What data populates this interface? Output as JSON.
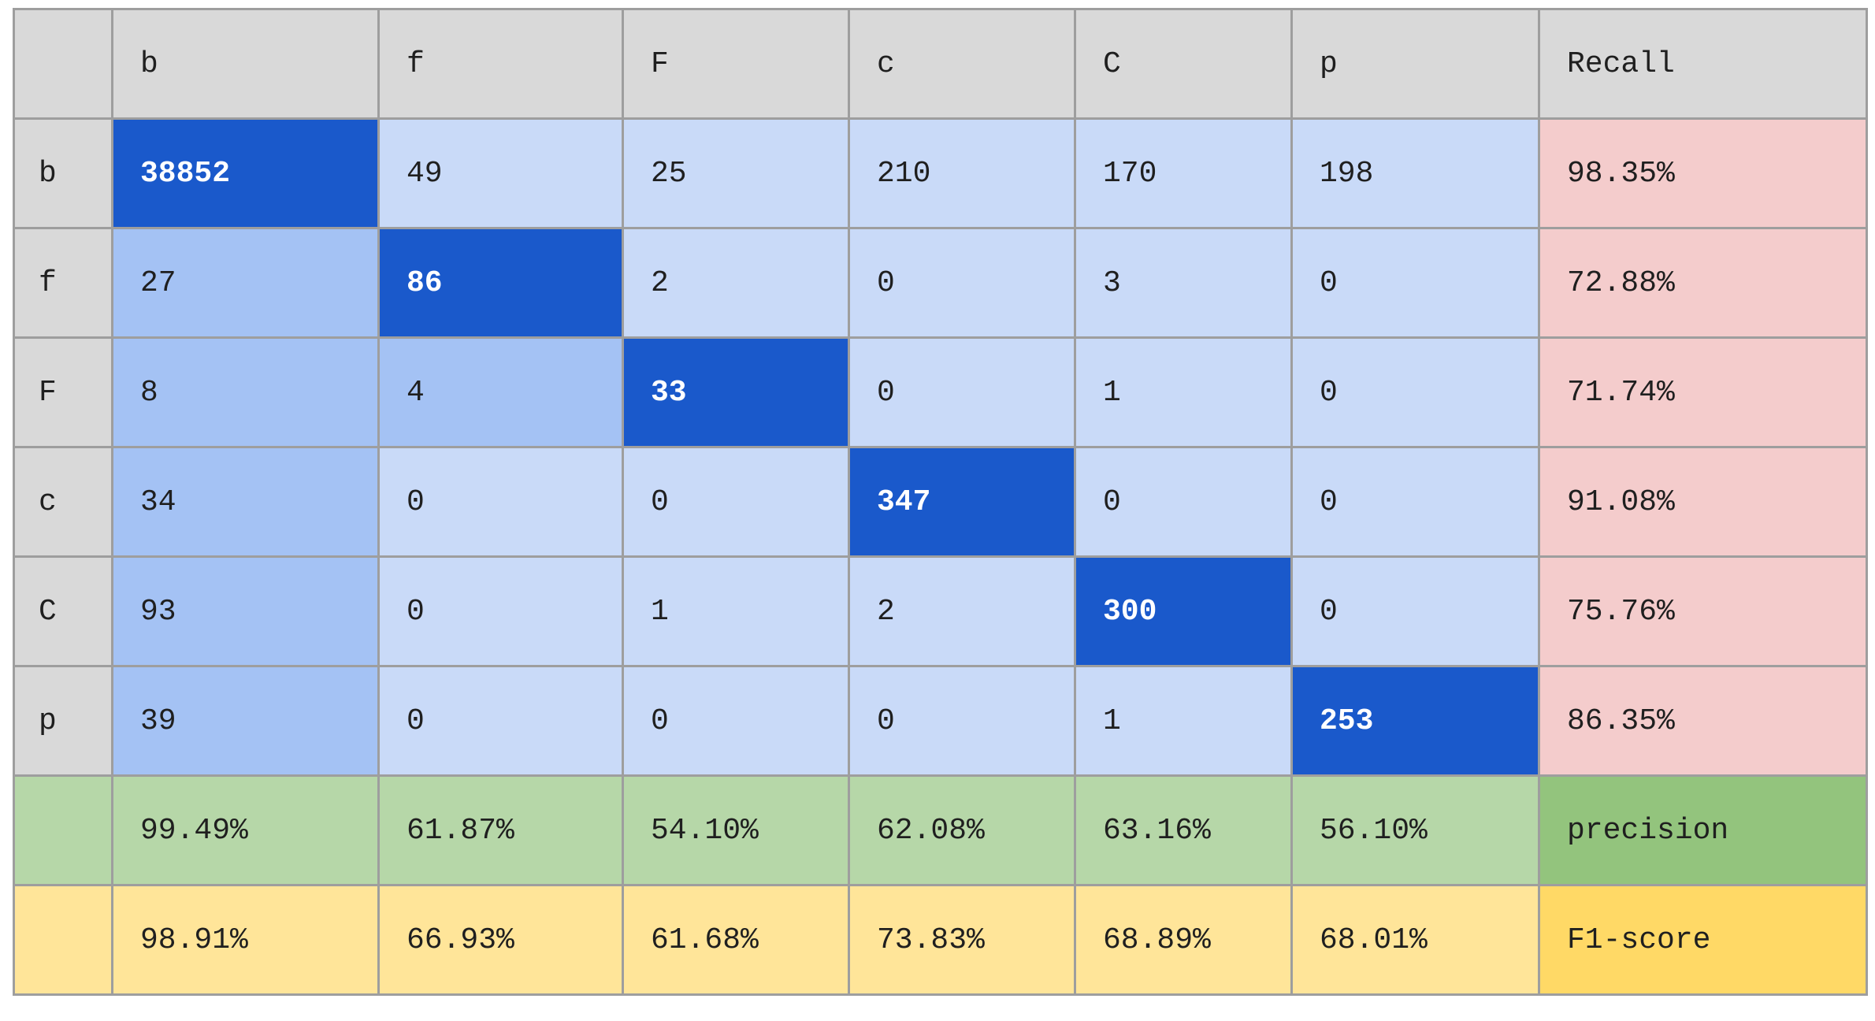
{
  "chart_data": {
    "type": "table",
    "labels": [
      "b",
      "f",
      "F",
      "c",
      "C",
      "p"
    ],
    "recall_header": "Recall",
    "matrix": [
      [
        38852,
        49,
        25,
        210,
        170,
        198
      ],
      [
        27,
        86,
        2,
        0,
        3,
        0
      ],
      [
        8,
        4,
        33,
        0,
        1,
        0
      ],
      [
        34,
        0,
        0,
        347,
        0,
        0
      ],
      [
        93,
        0,
        1,
        2,
        300,
        0
      ],
      [
        39,
        0,
        0,
        0,
        1,
        253
      ]
    ],
    "recall": [
      "98.35%",
      "72.88%",
      "71.74%",
      "91.08%",
      "75.76%",
      "86.35%"
    ],
    "precision_label": "precision",
    "precision": [
      "99.49%",
      "61.87%",
      "54.10%",
      "62.08%",
      "63.16%",
      "56.10%"
    ],
    "f1_label": "F1-score",
    "f1": [
      "98.91%",
      "66.93%",
      "61.68%",
      "73.83%",
      "68.89%",
      "68.01%"
    ]
  },
  "colors": {
    "header_gray": "#d9d9d9",
    "diagonal_blue": "#1a59cb",
    "first_column_blue": "#a4c2f4",
    "off_diagonal_blue": "#c9daf8",
    "recall_pink": "#f4cccc",
    "precision_green": "#b6d7a8",
    "precision_label_green": "#93c47d",
    "f1_yellow": "#ffe599",
    "f1_label_yellow": "#ffd966"
  }
}
